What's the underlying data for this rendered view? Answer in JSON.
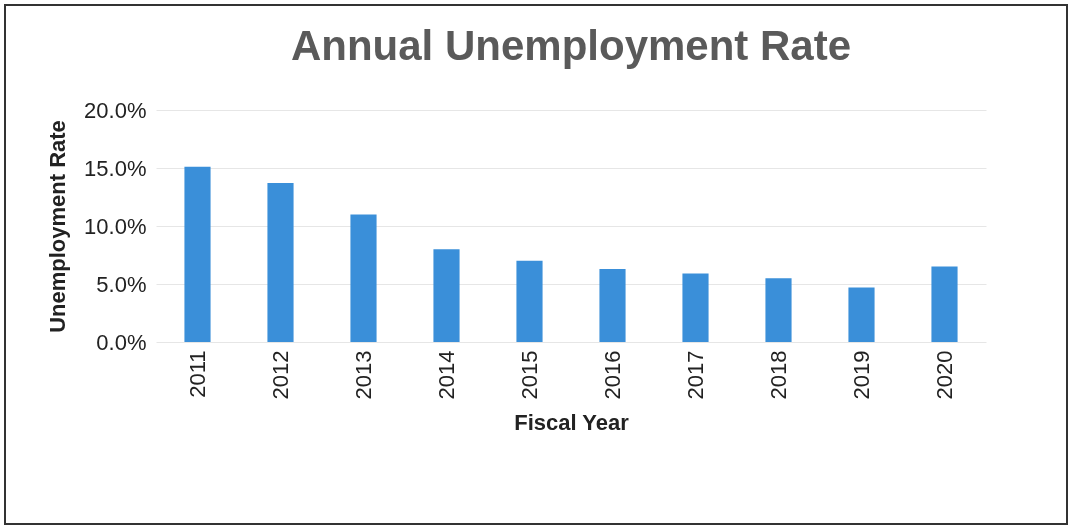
{
  "chart_data": {
    "type": "bar",
    "title": "Annual Unemployment Rate",
    "xlabel": "Fiscal Year",
    "ylabel": "Unemployment Rate",
    "categories": [
      "2011",
      "2012",
      "2013",
      "2014",
      "2015",
      "2016",
      "2017",
      "2018",
      "2019",
      "2020"
    ],
    "values": [
      15.1,
      13.7,
      11.0,
      8.0,
      7.0,
      6.3,
      5.9,
      5.5,
      4.7,
      6.5
    ],
    "color": "#3a8fd9",
    "ylim": [
      0,
      20
    ],
    "yticks": [
      {
        "value": 0,
        "label": "0.0%"
      },
      {
        "value": 5,
        "label": "5.0%"
      },
      {
        "value": 10,
        "label": "10.0%"
      },
      {
        "value": 15,
        "label": "15.0%"
      },
      {
        "value": 20,
        "label": "20.0%"
      }
    ],
    "grid": "y"
  }
}
